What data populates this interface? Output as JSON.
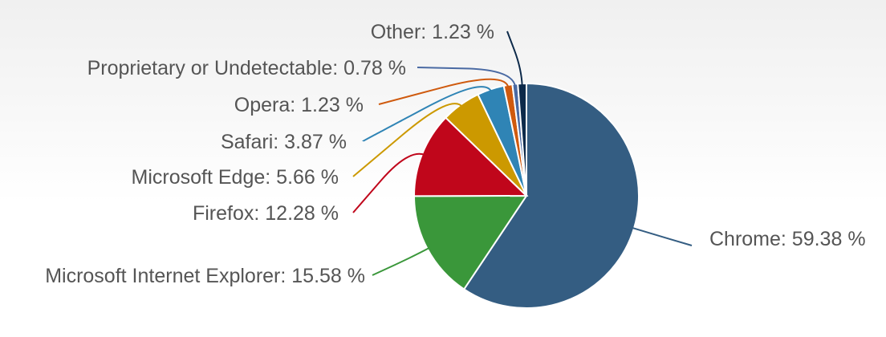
{
  "chart_data": {
    "type": "pie",
    "title": "",
    "start_angle_deg": 0,
    "label_separator": ": ",
    "value_suffix": " %",
    "slices": [
      {
        "name": "Chrome",
        "value": 59.38,
        "color": "#345d82"
      },
      {
        "name": "Microsoft Internet Explorer",
        "value": 15.58,
        "color": "#3a973a"
      },
      {
        "name": "Firefox",
        "value": 12.28,
        "color": "#c0061b"
      },
      {
        "name": "Microsoft Edge",
        "value": 5.66,
        "color": "#cc9900"
      },
      {
        "name": "Safari",
        "value": 3.87,
        "color": "#2f84b5"
      },
      {
        "name": "Opera",
        "value": 1.23,
        "color": "#cf5a0e"
      },
      {
        "name": "Proprietary or Undetectable",
        "value": 0.78,
        "color": "#4a6aa3"
      },
      {
        "name": "Other",
        "value": 1.23,
        "color": "#0d2a4a"
      }
    ]
  }
}
